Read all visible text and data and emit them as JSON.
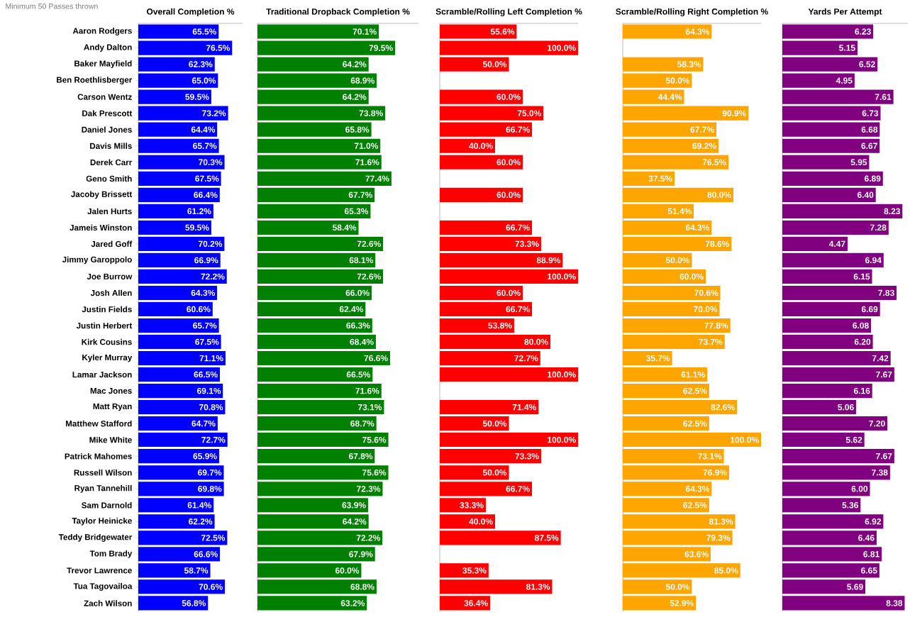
{
  "chart_data": [
    {
      "type": "bar",
      "orientation": "horizontal",
      "subtitle": "Minimum 50 Passes thrown",
      "title": "Overall Completion %",
      "tick_labels": "y",
      "color": "#0000ff",
      "xlim": [
        0,
        85
      ],
      "categories": [
        "Aaron Rodgers",
        "Andy Dalton",
        "Baker Mayfield",
        "Ben Roethlisberger",
        "Carson Wentz",
        "Dak Prescott",
        "Daniel Jones",
        "Davis Mills",
        "Derek Carr",
        "Geno Smith",
        "Jacoby Brissett",
        "Jalen Hurts",
        "Jameis Winston",
        "Jared Goff",
        "Jimmy Garoppolo",
        "Joe Burrow",
        "Josh Allen",
        "Justin Fields",
        "Justin Herbert",
        "Kirk Cousins",
        "Kyler Murray",
        "Lamar Jackson",
        "Mac Jones",
        "Matt Ryan",
        "Matthew Stafford",
        "Mike White",
        "Patrick Mahomes",
        "Russell Wilson",
        "Ryan Tannehill",
        "Sam Darnold",
        "Taylor Heinicke",
        "Teddy Bridgewater",
        "Tom Brady",
        "Trevor Lawrence",
        "Tua Tagovailoa",
        "Zach Wilson"
      ],
      "values": [
        65.5,
        76.5,
        62.3,
        65.0,
        59.5,
        73.2,
        64.4,
        65.7,
        70.3,
        67.5,
        66.4,
        61.2,
        59.5,
        70.2,
        66.9,
        72.2,
        64.3,
        60.6,
        65.7,
        67.5,
        71.1,
        66.5,
        69.1,
        70.8,
        64.7,
        72.7,
        65.9,
        69.7,
        69.8,
        61.4,
        62.2,
        72.5,
        66.6,
        58.7,
        70.6,
        56.8
      ],
      "value_labels": [
        "65.5%",
        "76.5%",
        "62.3%",
        "65.0%",
        "59.5%",
        "73.2%",
        "64.4%",
        "65.7%",
        "70.3%",
        "67.5%",
        "66.4%",
        "61.2%",
        "59.5%",
        "70.2%",
        "66.9%",
        "72.2%",
        "64.3%",
        "60.6%",
        "65.7%",
        "67.5%",
        "71.1%",
        "66.5%",
        "69.1%",
        "70.8%",
        "64.7%",
        "72.7%",
        "65.9%",
        "69.7%",
        "69.8%",
        "61.4%",
        "62.2%",
        "72.5%",
        "66.6%",
        "58.7%",
        "70.6%",
        "56.8%"
      ]
    },
    {
      "type": "bar",
      "orientation": "horizontal",
      "title": "Traditional Dropback Completion %",
      "tick_labels": false,
      "color": "#008000",
      "xlim": [
        0,
        93
      ],
      "categories": [
        null,
        null,
        null,
        null,
        null,
        null,
        null,
        null,
        null,
        null,
        null,
        null,
        null,
        null,
        null,
        null,
        null,
        null,
        null,
        null,
        null,
        null,
        null,
        null,
        null,
        null,
        null,
        null,
        null,
        null,
        null,
        null,
        null,
        null,
        null,
        null
      ],
      "values": [
        70.1,
        79.5,
        64.2,
        68.9,
        64.2,
        73.8,
        65.8,
        71.0,
        71.6,
        77.4,
        67.7,
        65.3,
        58.4,
        72.6,
        68.1,
        72.6,
        66.0,
        62.4,
        66.3,
        68.4,
        76.6,
        66.5,
        71.6,
        73.1,
        68.7,
        75.6,
        67.8,
        75.6,
        72.3,
        63.9,
        64.2,
        72.2,
        67.9,
        60.0,
        68.8,
        63.2
      ],
      "value_labels": [
        "70.1%",
        "79.5%",
        "64.2%",
        "68.9%",
        "64.2%",
        "73.8%",
        "65.8%",
        "71.0%",
        "71.6%",
        "77.4%",
        "67.7%",
        "65.3%",
        "58.4%",
        "72.6%",
        "68.1%",
        "72.6%",
        "66.0%",
        "62.4%",
        "66.3%",
        "68.4%",
        "76.6%",
        "66.5%",
        "71.6%",
        "73.1%",
        "68.7%",
        "75.6%",
        "67.8%",
        "75.6%",
        "72.3%",
        "63.9%",
        "64.2%",
        "72.2%",
        "67.9%",
        "60.0%",
        "68.8%",
        "63.2%"
      ]
    },
    {
      "type": "bar",
      "orientation": "horizontal",
      "title": "Scramble/Rolling Left Completion %",
      "tick_labels": false,
      "color": "#ff0000",
      "xlim": [
        0,
        100
      ],
      "categories": [
        null,
        null,
        null,
        null,
        null,
        null,
        null,
        null,
        null,
        null,
        null,
        null,
        null,
        null,
        null,
        null,
        null,
        null,
        null,
        null,
        null,
        null,
        null,
        null,
        null,
        null,
        null,
        null,
        null,
        null,
        null,
        null,
        null,
        null,
        null,
        null
      ],
      "values": [
        55.6,
        100.0,
        50.0,
        null,
        60.0,
        75.0,
        66.7,
        40.0,
        60.0,
        null,
        60.0,
        null,
        66.7,
        73.3,
        88.9,
        100.0,
        60.0,
        66.7,
        53.8,
        80.0,
        72.7,
        100.0,
        null,
        71.4,
        50.0,
        100.0,
        73.3,
        50.0,
        66.7,
        33.3,
        40.0,
        87.5,
        null,
        35.3,
        81.3,
        36.4
      ],
      "value_labels": [
        "55.6%",
        "100.0%",
        "50.0%",
        null,
        "60.0%",
        "75.0%",
        "66.7%",
        "40.0%",
        "60.0%",
        null,
        "60.0%",
        null,
        "66.7%",
        "73.3%",
        "88.9%",
        "100.0%",
        "60.0%",
        "66.7%",
        "53.8%",
        "80.0%",
        "72.7%",
        "100.0%",
        null,
        "71.4%",
        "50.0%",
        "100.0%",
        "73.3%",
        "50.0%",
        "66.7%",
        "33.3%",
        "40.0%",
        "87.5%",
        null,
        "35.3%",
        "81.3%",
        "36.4%"
      ]
    },
    {
      "type": "bar",
      "orientation": "horizontal",
      "title": "Scramble/Rolling Right Completion %",
      "tick_labels": false,
      "color": "#ffa500",
      "xlim": [
        0,
        100
      ],
      "categories": [
        null,
        null,
        null,
        null,
        null,
        null,
        null,
        null,
        null,
        null,
        null,
        null,
        null,
        null,
        null,
        null,
        null,
        null,
        null,
        null,
        null,
        null,
        null,
        null,
        null,
        null,
        null,
        null,
        null,
        null,
        null,
        null,
        null,
        null,
        null,
        null
      ],
      "values": [
        64.3,
        null,
        58.3,
        50.0,
        44.4,
        90.9,
        67.7,
        69.2,
        76.5,
        37.5,
        80.0,
        51.4,
        64.3,
        78.6,
        50.0,
        60.0,
        70.6,
        70.0,
        77.8,
        73.7,
        35.7,
        61.1,
        62.5,
        82.6,
        62.5,
        100.0,
        73.1,
        76.9,
        64.3,
        62.5,
        81.3,
        79.3,
        63.6,
        85.0,
        50.0,
        52.9
      ],
      "value_labels": [
        "64.3%",
        null,
        "58.3%",
        "50.0%",
        "44.4%",
        "90.9%",
        "67.7%",
        "69.2%",
        "76.5%",
        "37.5%",
        "80.0%",
        "51.4%",
        "64.3%",
        "78.6%",
        "50.0%",
        "60.0%",
        "70.6%",
        "70.0%",
        "77.8%",
        "73.7%",
        "35.7%",
        "61.1%",
        "62.5%",
        "82.6%",
        "62.5%",
        "100.0%",
        "73.1%",
        "76.9%",
        "64.3%",
        "62.5%",
        "81.3%",
        "79.3%",
        "63.6%",
        "85.0%",
        "50.0%",
        "52.9%"
      ]
    },
    {
      "type": "bar",
      "orientation": "horizontal",
      "title": "Yards Per Attempt",
      "tick_labels": false,
      "color": "#800080",
      "xlim": [
        0,
        8.6
      ],
      "categories": [
        null,
        null,
        null,
        null,
        null,
        null,
        null,
        null,
        null,
        null,
        null,
        null,
        null,
        null,
        null,
        null,
        null,
        null,
        null,
        null,
        null,
        null,
        null,
        null,
        null,
        null,
        null,
        null,
        null,
        null,
        null,
        null,
        null,
        null,
        null,
        null
      ],
      "values": [
        6.23,
        5.15,
        6.52,
        4.95,
        7.61,
        6.73,
        6.68,
        6.67,
        5.95,
        6.89,
        6.4,
        8.23,
        7.28,
        4.47,
        6.94,
        6.15,
        7.83,
        6.69,
        6.08,
        6.2,
        7.42,
        7.67,
        6.16,
        5.06,
        7.2,
        5.62,
        7.67,
        7.38,
        6.0,
        5.36,
        6.92,
        6.46,
        6.81,
        6.65,
        5.69,
        8.38
      ],
      "value_labels": [
        "6.23",
        "5.15",
        "6.52",
        "4.95",
        "7.61",
        "6.73",
        "6.68",
        "6.67",
        "5.95",
        "6.89",
        "6.40",
        "8.23",
        "7.28",
        "4.47",
        "6.94",
        "6.15",
        "7.83",
        "6.69",
        "6.08",
        "6.20",
        "7.42",
        "7.67",
        "6.16",
        "5.06",
        "7.20",
        "5.62",
        "7.67",
        "7.38",
        "6.00",
        "5.36",
        "6.92",
        "6.46",
        "6.81",
        "6.65",
        "5.69",
        "8.38"
      ]
    }
  ]
}
